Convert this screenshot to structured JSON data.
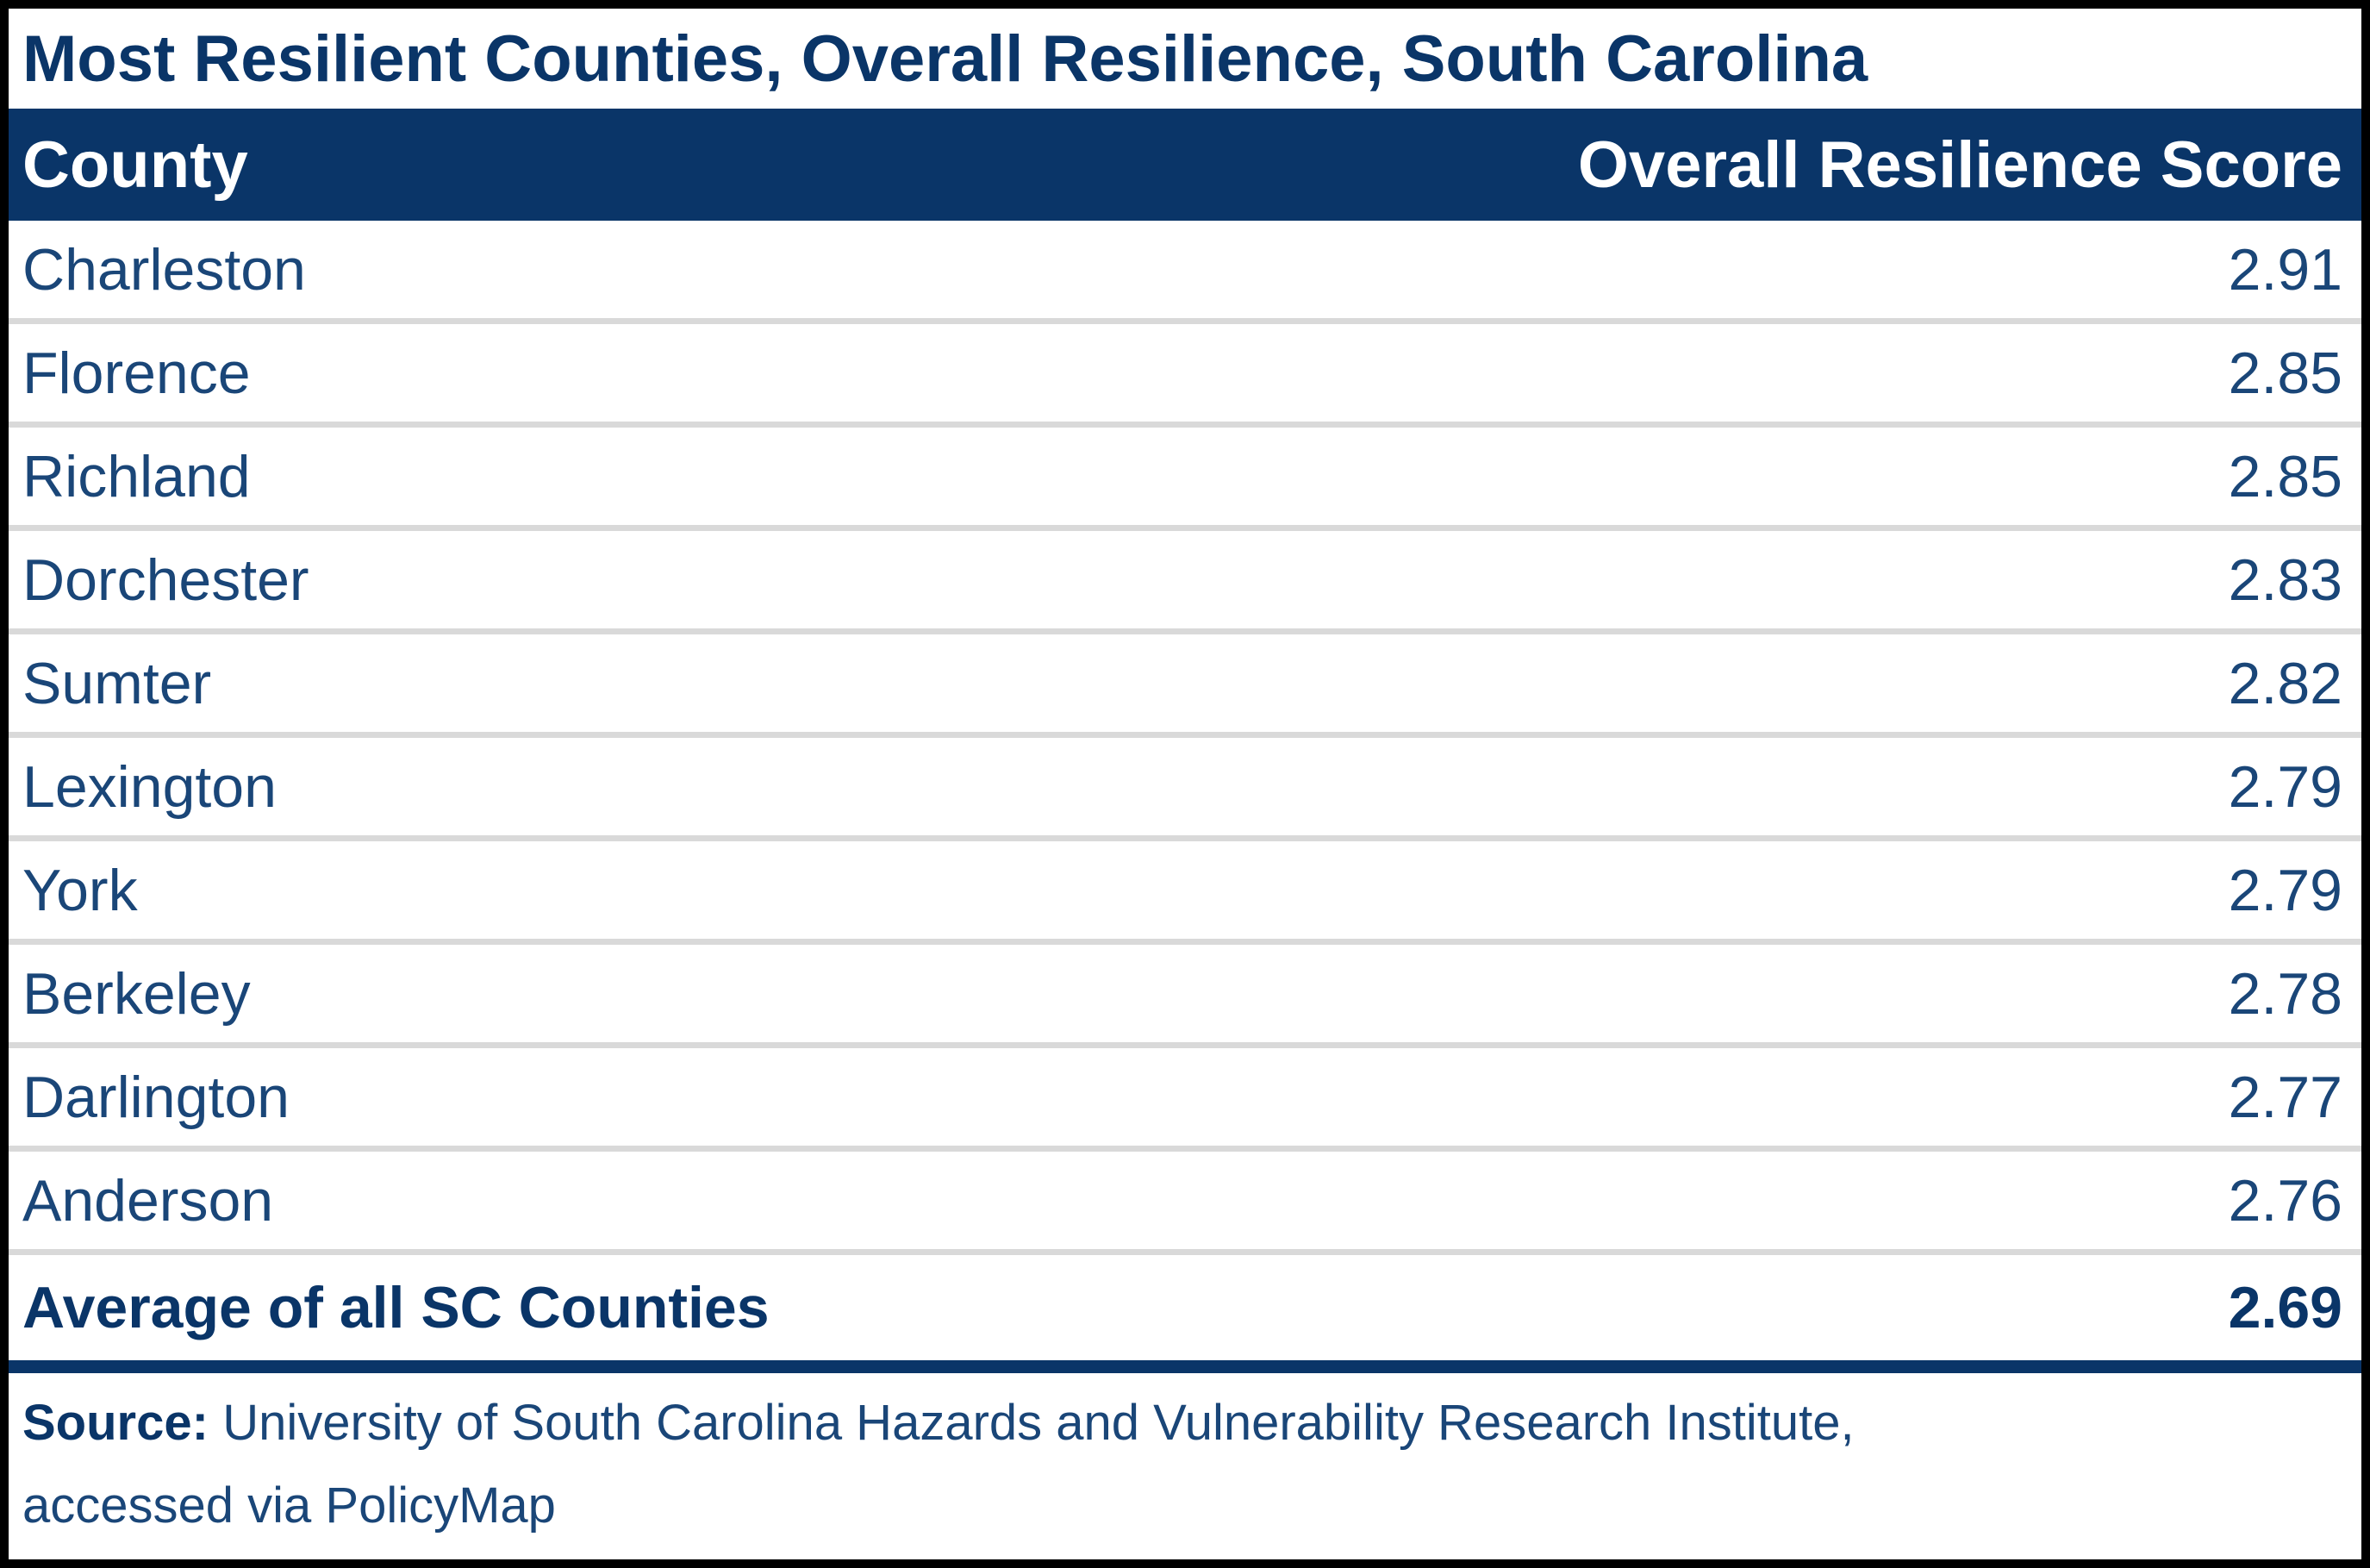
{
  "title": "Most Resilient Counties, Overall Resilience, South Carolina",
  "columns": {
    "county": "County",
    "score": "Overall Resilience Score"
  },
  "rows": [
    {
      "county": "Charleston",
      "score": "2.91"
    },
    {
      "county": "Florence",
      "score": "2.85"
    },
    {
      "county": "Richland",
      "score": "2.85"
    },
    {
      "county": "Dorchester",
      "score": "2.83"
    },
    {
      "county": "Sumter",
      "score": "2.82"
    },
    {
      "county": "Lexington",
      "score": "2.79"
    },
    {
      "county": "York",
      "score": "2.79"
    },
    {
      "county": "Berkeley",
      "score": "2.78"
    },
    {
      "county": "Darlington",
      "score": "2.77"
    },
    {
      "county": "Anderson",
      "score": "2.76"
    }
  ],
  "summary": {
    "label": "Average of all SC Counties",
    "score": "2.69"
  },
  "source": {
    "label": "Source:",
    "line1": "University of South Carolina Hazards and Vulnerability Research Institute,",
    "line2": "accessed via PolicyMap"
  },
  "chart_data": {
    "type": "table",
    "title": "Most Resilient Counties, Overall Resilience, South Carolina",
    "columns": [
      "County",
      "Overall Resilience Score"
    ],
    "rows": [
      [
        "Charleston",
        2.91
      ],
      [
        "Florence",
        2.85
      ],
      [
        "Richland",
        2.85
      ],
      [
        "Dorchester",
        2.83
      ],
      [
        "Sumter",
        2.82
      ],
      [
        "Lexington",
        2.79
      ],
      [
        "York",
        2.79
      ],
      [
        "Berkeley",
        2.78
      ],
      [
        "Darlington",
        2.77
      ],
      [
        "Anderson",
        2.76
      ]
    ],
    "summary_row": [
      "Average of all SC Counties",
      2.69
    ],
    "source": "University of South Carolina Hazards and Vulnerability Research Institute, accessed via PolicyMap"
  },
  "colors": {
    "navy_dark": "#0A3568",
    "navy_text": "#1A4678",
    "separator_gray": "#D9D9D9",
    "border_black": "#000000",
    "header_text": "#FFFFFF"
  }
}
